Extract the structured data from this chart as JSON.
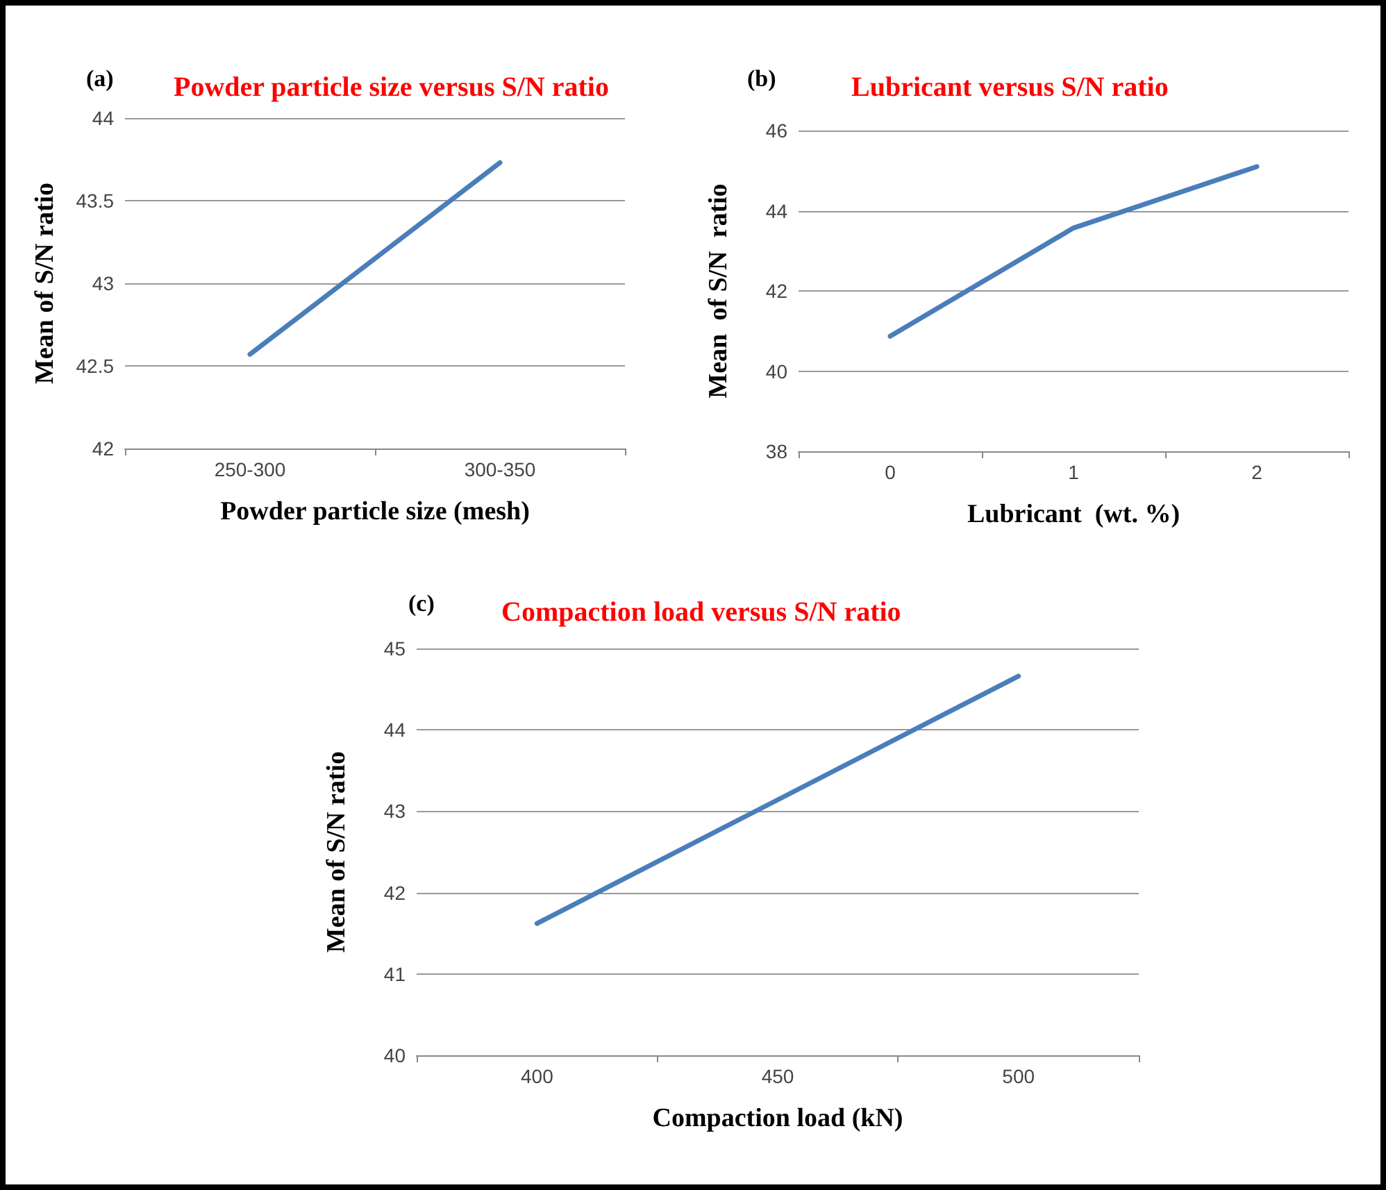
{
  "chart_data": [
    {
      "type": "line",
      "title": "Powder particle size versus S/N ratio",
      "annotations": [
        "(a)"
      ],
      "xlabel": "Powder particle size (mesh)",
      "ylabel": "Mean of S/N ratio",
      "categories": [
        "250-300",
        "300-350"
      ],
      "series": [
        {
          "color": "#4a7ebb",
          "values": [
            42.57,
            43.73
          ]
        }
      ],
      "ylim": [
        42,
        44
      ],
      "yticks": [
        42,
        42.5,
        43,
        43.5,
        44
      ],
      "grid": "y",
      "marker": "none",
      "line_style": "solid"
    },
    {
      "type": "line",
      "title": "Lubricant versus S/N ratio",
      "annotations": [
        "(b)"
      ],
      "xlabel": "Lubricant  (wt. %)",
      "ylabel": "Mean  of S/N  ratio",
      "categories": [
        "0",
        "1",
        "2"
      ],
      "series": [
        {
          "color": "#4a7ebb",
          "values": [
            40.87,
            43.57,
            45.1
          ]
        }
      ],
      "ylim": [
        38,
        46
      ],
      "yticks": [
        38,
        40,
        42,
        44,
        46
      ],
      "grid": "y",
      "marker": "none",
      "line_style": "solid"
    },
    {
      "type": "line",
      "title": "Compaction load versus S/N ratio",
      "annotations": [
        "(c)"
      ],
      "xlabel": "Compaction load (kN)",
      "ylabel": "Mean of S/N ratio",
      "categories": [
        "400",
        "450",
        "500"
      ],
      "series": [
        {
          "color": "#4a7ebb",
          "values": [
            41.62,
            43.14,
            44.66
          ]
        }
      ],
      "ylim": [
        40,
        45
      ],
      "yticks": [
        40,
        41,
        42,
        43,
        44,
        45
      ],
      "grid": "y",
      "marker": "none",
      "line_style": "solid"
    }
  ]
}
